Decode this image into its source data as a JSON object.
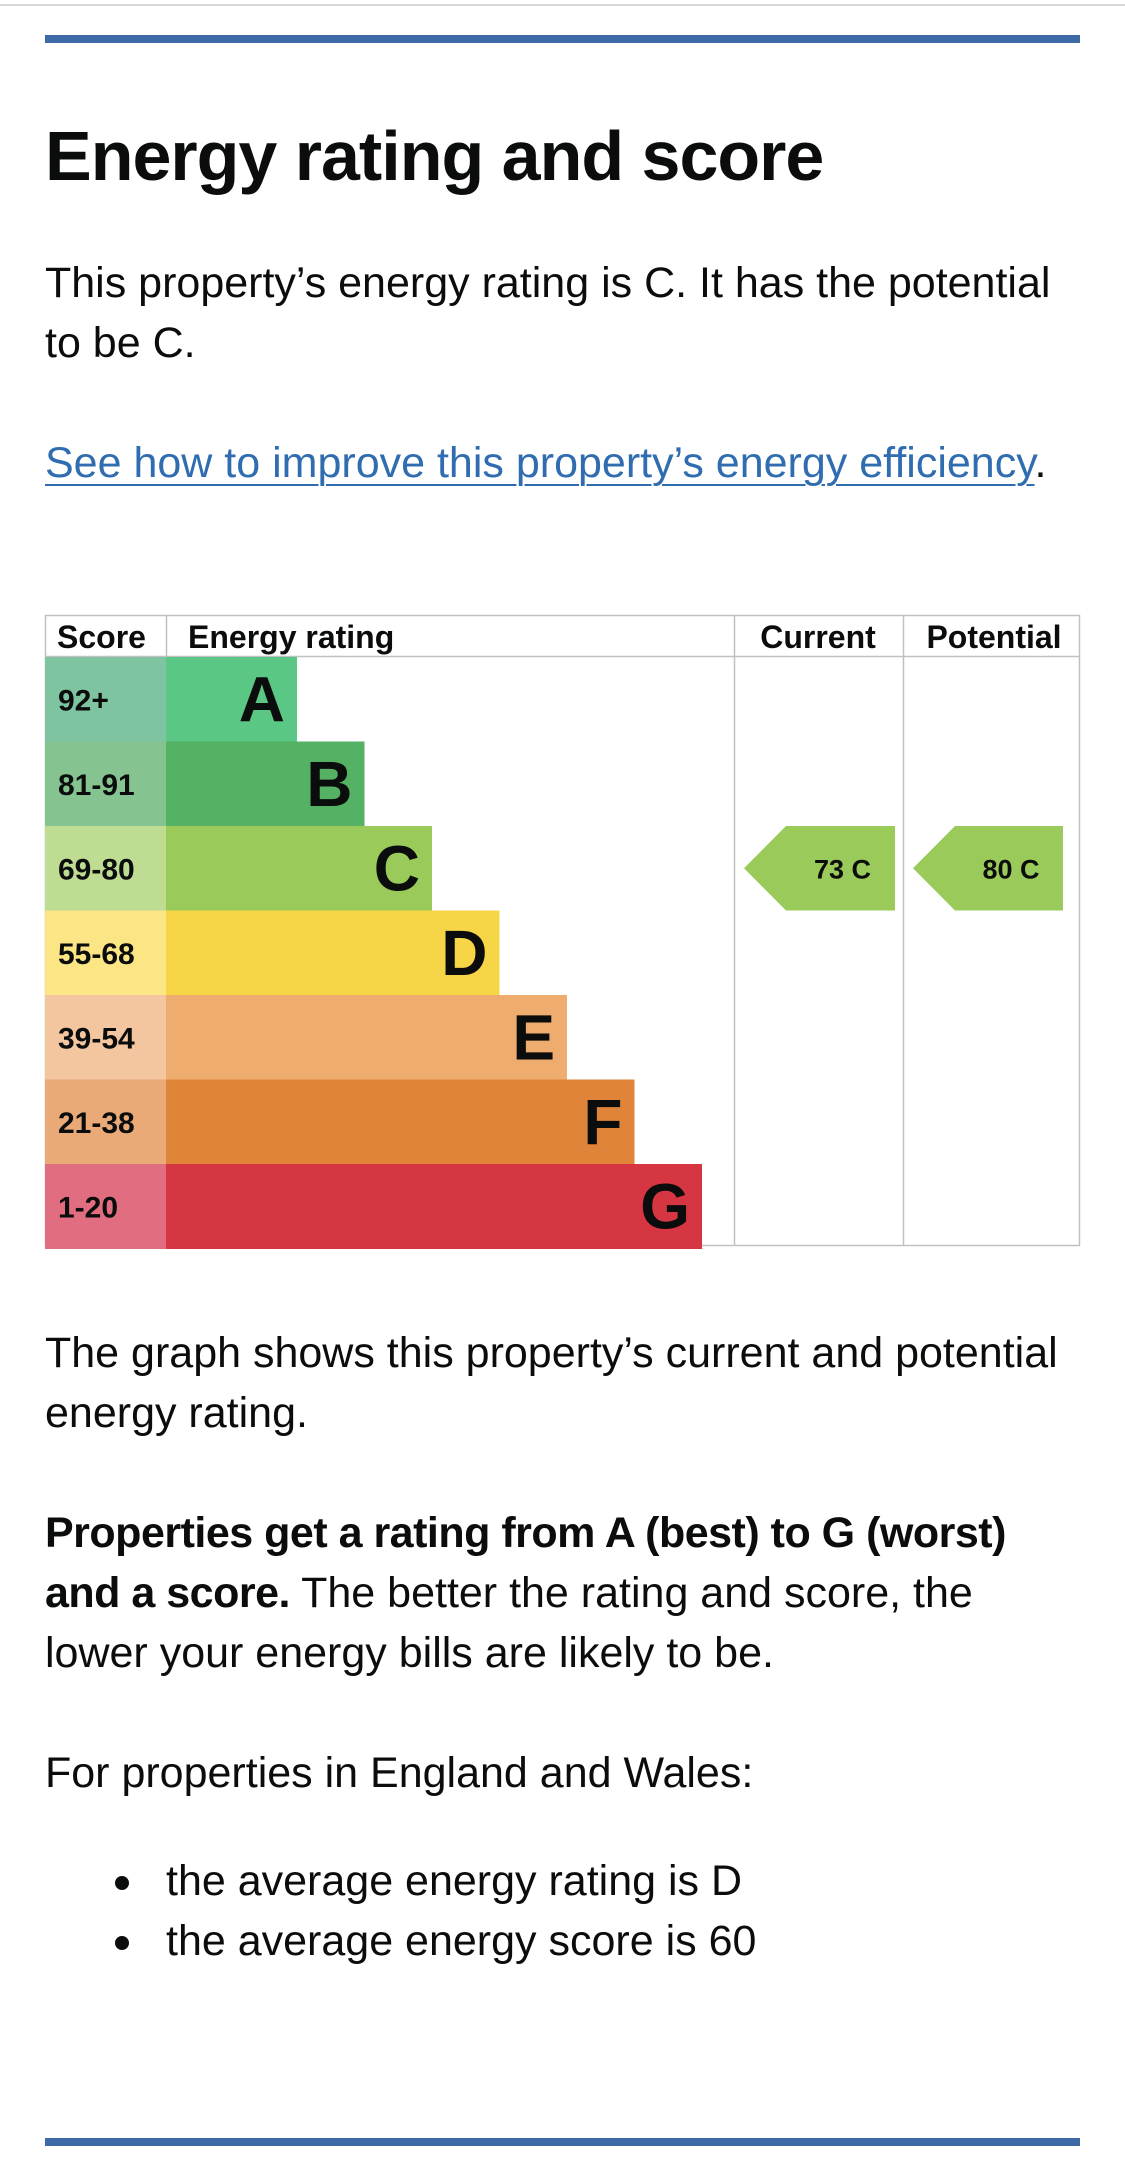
{
  "heading": "Energy rating and score",
  "intro": "This property’s energy rating is C. It has the potential to be C.",
  "link": {
    "text": "See how to improve this property’s energy efficiency",
    "suffix": "."
  },
  "chart_data": {
    "type": "bar",
    "headers": {
      "score": "Score",
      "rating": "Energy rating",
      "current": "Current",
      "potential": "Potential"
    },
    "bands": [
      {
        "letter": "A",
        "range": "92+",
        "color": "#5ac785",
        "score_color": "#7ec4a1"
      },
      {
        "letter": "B",
        "range": "81-91",
        "color": "#55b264",
        "score_color": "#85c491"
      },
      {
        "letter": "C",
        "range": "69-80",
        "color": "#9acb5a",
        "score_color": "#bedd92"
      },
      {
        "letter": "D",
        "range": "55-68",
        "color": "#f6d647",
        "score_color": "#fbe584"
      },
      {
        "letter": "E",
        "range": "39-54",
        "color": "#efac6f",
        "score_color": "#f3c6a0"
      },
      {
        "letter": "F",
        "range": "21-38",
        "color": "#e0843a",
        "score_color": "#e9aa77"
      },
      {
        "letter": "G",
        "range": "1-20",
        "color": "#d63542",
        "score_color": "#e06d80"
      }
    ],
    "current": {
      "score": 73,
      "letter": "C",
      "label": "73  C"
    },
    "potential": {
      "score": 80,
      "letter": "C",
      "label": "80  C"
    }
  },
  "explain": "The graph shows this property’s current and potential energy rating.",
  "rating_info": {
    "bold": "Properties get a rating from A (best) to G (worst) and a score.",
    "rest": " The better the rating and score, the lower your energy bills are likely to be."
  },
  "england_wales": "For properties in England and Wales:",
  "averages": [
    "the average energy rating is D",
    "the average energy score is 60"
  ]
}
